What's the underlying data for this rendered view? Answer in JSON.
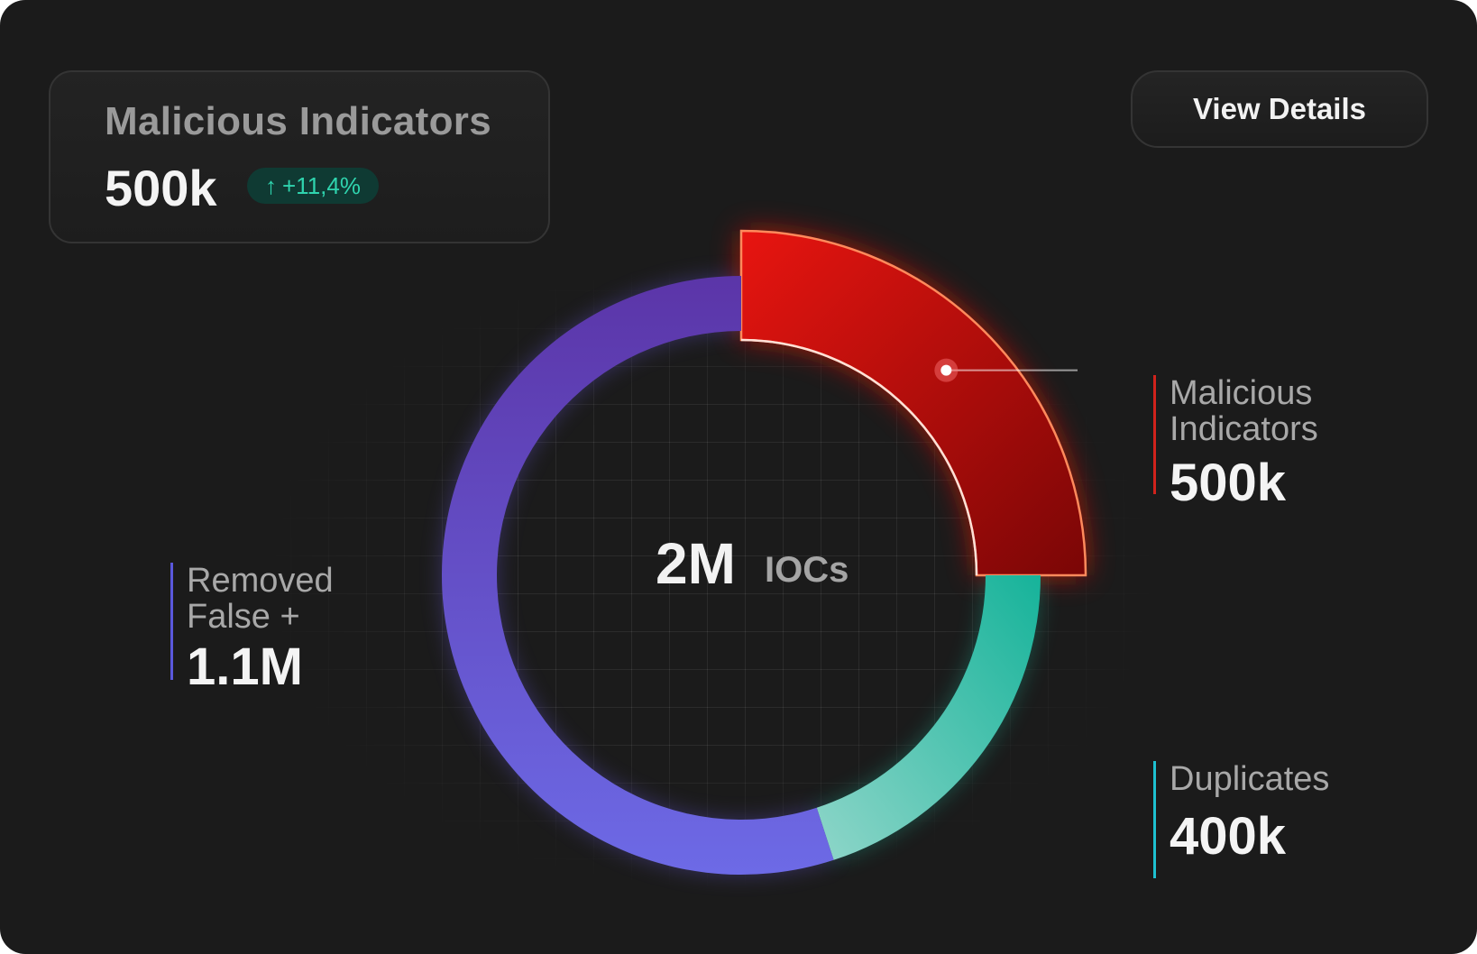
{
  "summary": {
    "title": "Malicious Indicators",
    "value": "500k",
    "change": "+11,4%",
    "change_icon": "arrow-up-icon"
  },
  "header": {
    "view_details_label": "View Details"
  },
  "center": {
    "value": "2M",
    "unit": "IOCs"
  },
  "colors": {
    "malicious": "#e0120f",
    "duplicates": "#1fb89c",
    "removed": "#6a5ae0",
    "accent_badge": "#2fd4ae"
  },
  "chart_data": {
    "type": "pie",
    "variant": "donut",
    "total": "2M",
    "center_label": "IOCs",
    "slices": [
      {
        "name": "Malicious Indicators",
        "label_lines": [
          "Malicious",
          "Indicators"
        ],
        "value": 500000,
        "display": "500k",
        "color": "#e0120f",
        "highlighted": true
      },
      {
        "name": "Duplicates",
        "label_lines": [
          "Duplicates"
        ],
        "value": 400000,
        "display": "400k",
        "color": "#1fb89c"
      },
      {
        "name": "Removed False +",
        "label_lines": [
          "Removed",
          "False +"
        ],
        "value": 1100000,
        "display": "1.1M",
        "color": "#6a5ae0"
      }
    ]
  }
}
